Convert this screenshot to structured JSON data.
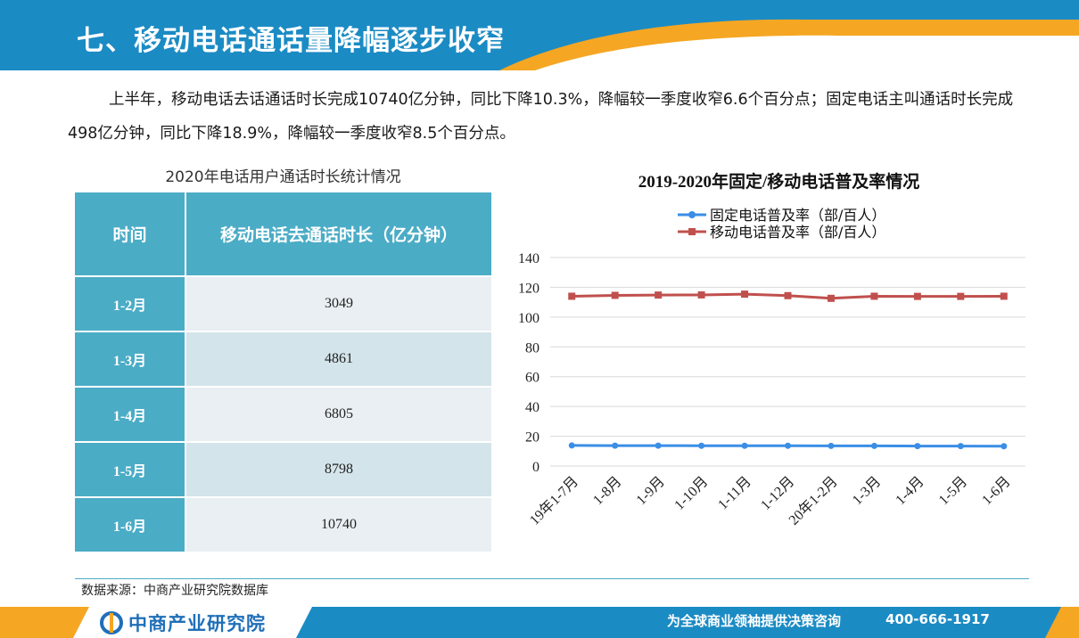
{
  "header": {
    "title": "七、移动电话通话量降幅逐步收窄"
  },
  "summary": "上半年，移动电话去话通话时长完成10740亿分钟，同比下降10.3%，降幅较一季度收窄6.6个百分点；固定电话主叫通话时长完成498亿分钟，同比下降18.9%，降幅较一季度收窄8.5个百分点。",
  "table": {
    "title": "2020年电话用户通话时长统计情况",
    "headers": [
      "时间",
      "移动电话去通话时长（亿分钟）"
    ],
    "rows": [
      {
        "period": "1-2月",
        "value": "3049"
      },
      {
        "period": "1-3月",
        "value": "4861"
      },
      {
        "period": "1-4月",
        "value": "6805"
      },
      {
        "period": "1-5月",
        "value": "8798"
      },
      {
        "period": "1-6月",
        "value": "10740"
      }
    ]
  },
  "chart_data": {
    "type": "line",
    "title": "2019-2020年固定/移动电话普及率情况",
    "categories": [
      "19年1-7月",
      "1-8月",
      "1-9月",
      "1-10月",
      "1-11月",
      "1-12月",
      "20年1-2月",
      "1-3月",
      "1-4月",
      "1-5月",
      "1-6月"
    ],
    "series": [
      {
        "name": "固定电话普及率（部/百人）",
        "color": "#3a8ee6",
        "marker": "circle",
        "values": [
          13.8,
          13.7,
          13.7,
          13.6,
          13.6,
          13.6,
          13.5,
          13.5,
          13.4,
          13.4,
          13.3
        ]
      },
      {
        "name": "移动电话普及率（部/百人）",
        "color": "#c0504d",
        "marker": "square",
        "values": [
          114,
          114.6,
          114.8,
          114.9,
          115.4,
          114.4,
          112.6,
          114.0,
          113.9,
          113.9,
          114.0
        ]
      }
    ],
    "ylim": [
      0,
      140
    ],
    "yticks": [
      0,
      20,
      40,
      60,
      80,
      100,
      120,
      140
    ],
    "grid": true,
    "legend": "top-center"
  },
  "footer": {
    "source": "数据来源：中商产业研究院数据库",
    "logo_text": "中商产业研究院",
    "slogan": "为全球商业领袖提供决策咨询",
    "phone": "400-666-1917"
  },
  "colors": {
    "header_blue": "#1b8bc4",
    "accent_orange": "#f5a623",
    "table_teal": "#4bacc6"
  }
}
